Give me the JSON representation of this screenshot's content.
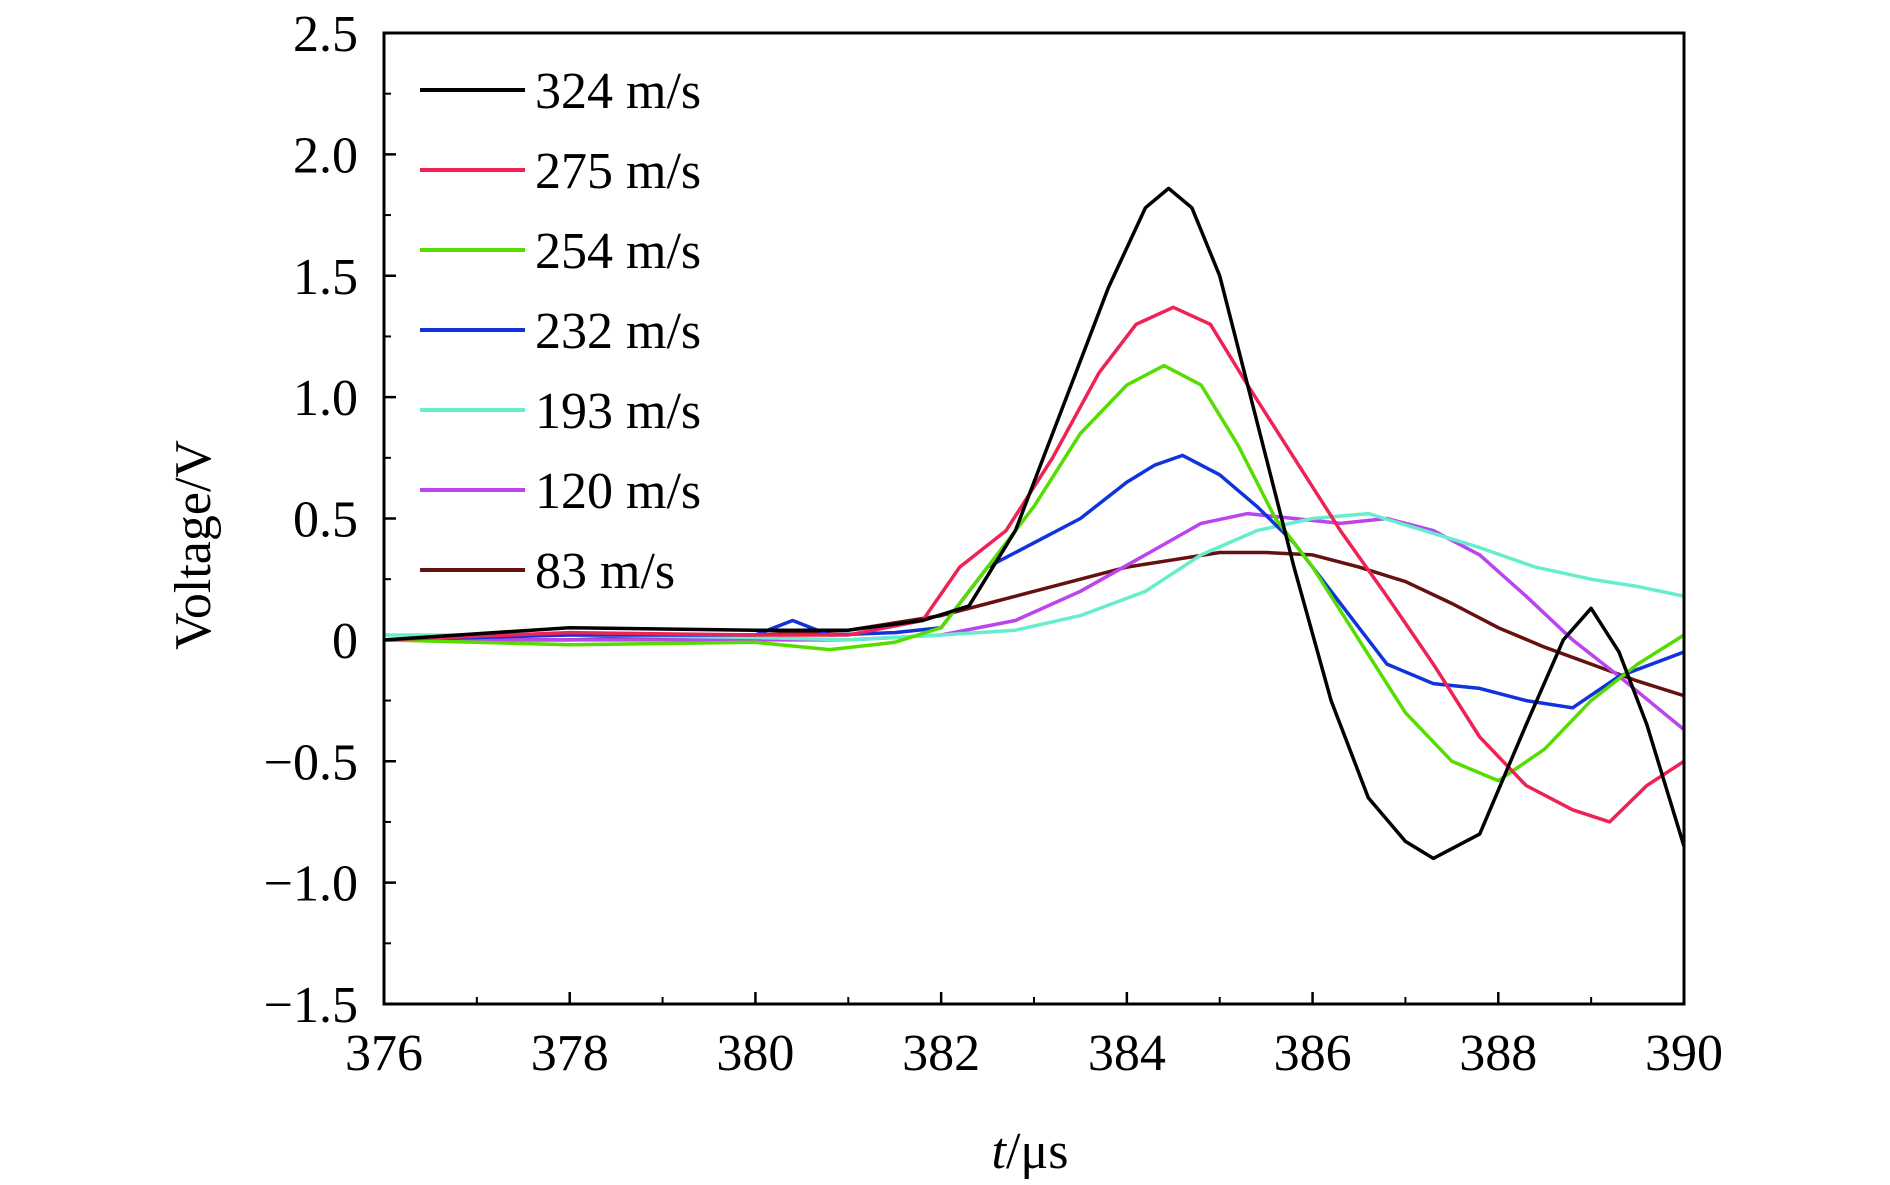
{
  "chart_data": {
    "type": "line",
    "xlabel": {
      "italic": "t",
      "rest": "/μs"
    },
    "ylabel": "Voltage/V",
    "xlim": [
      376,
      390
    ],
    "ylim": [
      -1.5,
      2.5
    ],
    "xticks": [
      376,
      378,
      380,
      382,
      384,
      386,
      388,
      390
    ],
    "xtick_labels": [
      "376",
      "378",
      "380",
      "382",
      "384",
      "386",
      "388",
      "390"
    ],
    "yticks": [
      2.5,
      2.0,
      1.5,
      1.0,
      0.5,
      0,
      -0.5,
      -1.0,
      -1.5
    ],
    "ytick_labels": [
      "2.5",
      "2.0",
      "1.5",
      "1.0",
      "0.5",
      "0",
      "−0.5",
      "−1.0",
      "−1.5"
    ],
    "grid": false,
    "legend_position": "top-left",
    "series": [
      {
        "name": "324 m/s",
        "color": "#000000",
        "x": [
          376,
          378,
          380,
          381,
          381.8,
          382.3,
          382.8,
          383.3,
          383.8,
          384.2,
          384.45,
          384.7,
          385.0,
          385.4,
          385.8,
          386.2,
          386.6,
          387.0,
          387.3,
          387.8,
          388.3,
          388.7,
          389.0,
          389.3,
          389.6,
          390
        ],
        "y": [
          0.0,
          0.05,
          0.04,
          0.04,
          0.08,
          0.14,
          0.45,
          0.95,
          1.45,
          1.78,
          1.86,
          1.78,
          1.5,
          0.9,
          0.3,
          -0.25,
          -0.65,
          -0.83,
          -0.9,
          -0.8,
          -0.35,
          0.0,
          0.13,
          -0.05,
          -0.35,
          -0.85
        ]
      },
      {
        "name": "275 m/s",
        "color": "#ee2255",
        "x": [
          376,
          378,
          380,
          381,
          381.8,
          382.2,
          382.7,
          383.2,
          383.7,
          384.1,
          384.5,
          384.9,
          385.3,
          385.8,
          386.3,
          386.8,
          387.3,
          387.8,
          388.3,
          388.8,
          389.2,
          389.6,
          390
        ],
        "y": [
          0.0,
          0.03,
          0.02,
          0.02,
          0.08,
          0.3,
          0.45,
          0.75,
          1.1,
          1.3,
          1.37,
          1.3,
          1.05,
          0.75,
          0.45,
          0.18,
          -0.1,
          -0.4,
          -0.6,
          -0.7,
          -0.75,
          -0.6,
          -0.5
        ]
      },
      {
        "name": "254 m/s",
        "color": "#55dd00",
        "x": [
          376,
          378,
          380,
          380.8,
          381.5,
          382.0,
          382.5,
          383.0,
          383.5,
          384.0,
          384.4,
          384.8,
          385.2,
          385.6,
          386.0,
          386.5,
          387.0,
          387.5,
          388.0,
          388.5,
          389.0,
          389.5,
          390
        ],
        "y": [
          0.0,
          -0.02,
          -0.01,
          -0.04,
          -0.01,
          0.05,
          0.3,
          0.55,
          0.85,
          1.05,
          1.13,
          1.05,
          0.8,
          0.5,
          0.3,
          0.0,
          -0.3,
          -0.5,
          -0.58,
          -0.45,
          -0.25,
          -0.1,
          0.02
        ]
      },
      {
        "name": "232 m/s",
        "color": "#1133dd",
        "x": [
          376,
          378,
          380,
          380.4,
          380.8,
          381.5,
          382.0,
          382.5,
          383.0,
          383.5,
          384.0,
          384.3,
          384.6,
          385.0,
          385.4,
          385.8,
          386.3,
          386.8,
          387.3,
          387.8,
          388.3,
          388.8,
          389.3,
          390
        ],
        "y": [
          0.0,
          0.02,
          0.02,
          0.08,
          0.02,
          0.03,
          0.05,
          0.3,
          0.4,
          0.5,
          0.65,
          0.72,
          0.76,
          0.68,
          0.55,
          0.4,
          0.15,
          -0.1,
          -0.18,
          -0.2,
          -0.25,
          -0.28,
          -0.15,
          -0.05
        ]
      },
      {
        "name": "193 m/s",
        "color": "#66eecc",
        "x": [
          376,
          378,
          380,
          381,
          382,
          382.8,
          383.5,
          384.2,
          384.8,
          385.4,
          386.0,
          386.6,
          387.2,
          387.8,
          388.4,
          389.0,
          389.5,
          390
        ],
        "y": [
          0.02,
          0.02,
          0.01,
          0.0,
          0.02,
          0.04,
          0.1,
          0.2,
          0.35,
          0.45,
          0.5,
          0.52,
          0.45,
          0.38,
          0.3,
          0.25,
          0.22,
          0.18
        ]
      },
      {
        "name": "120 m/s",
        "color": "#bb44ee",
        "x": [
          376,
          378,
          380,
          381,
          382,
          382.8,
          383.5,
          384.2,
          384.8,
          385.3,
          385.8,
          386.3,
          386.8,
          387.3,
          387.8,
          388.3,
          388.8,
          389.3,
          390
        ],
        "y": [
          0.0,
          0.0,
          0.0,
          0.0,
          0.02,
          0.08,
          0.2,
          0.35,
          0.48,
          0.52,
          0.5,
          0.48,
          0.5,
          0.45,
          0.35,
          0.18,
          0.0,
          -0.15,
          -0.37
        ]
      },
      {
        "name": "83 m/s",
        "color": "#661111",
        "x": [
          376,
          377,
          378,
          379,
          380,
          381,
          381.5,
          382,
          382.5,
          383,
          383.5,
          384,
          384.5,
          385,
          385.5,
          386,
          386.5,
          387,
          387.5,
          388,
          388.5,
          389,
          389.5,
          390
        ],
        "y": [
          0.0,
          0.0,
          0.0,
          0.01,
          0.02,
          0.04,
          0.07,
          0.1,
          0.15,
          0.2,
          0.25,
          0.3,
          0.33,
          0.36,
          0.36,
          0.35,
          0.3,
          0.24,
          0.15,
          0.05,
          -0.03,
          -0.1,
          -0.17,
          -0.23
        ]
      }
    ]
  }
}
